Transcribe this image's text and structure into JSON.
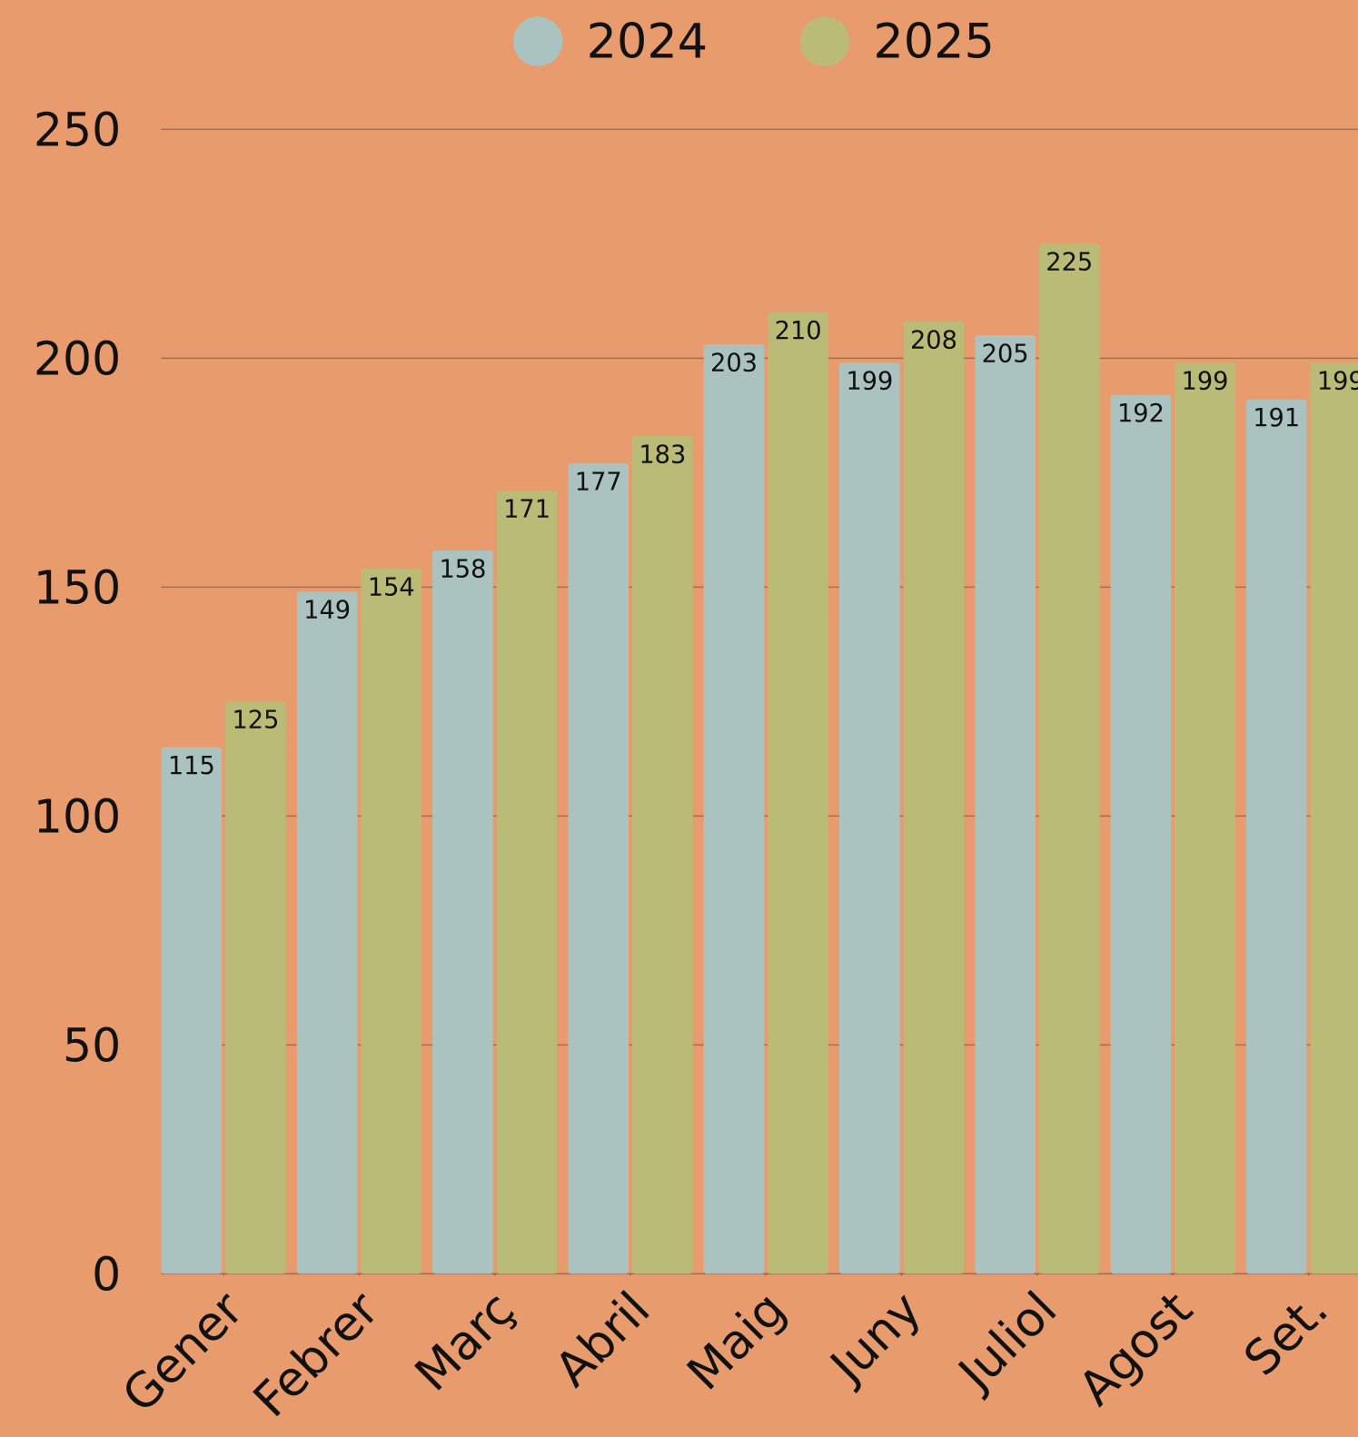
{
  "chart_data": {
    "type": "bar",
    "categories": [
      "Gener",
      "Febrer",
      "Març",
      "Abril",
      "Maig",
      "Juny",
      "Juliol",
      "Agost",
      "Set."
    ],
    "series": [
      {
        "name": "2024",
        "color": "#aac3c0",
        "values": [
          115,
          149,
          158,
          177,
          203,
          199,
          205,
          192,
          191
        ]
      },
      {
        "name": "2025",
        "color": "#bbbb78",
        "values": [
          125,
          154,
          171,
          183,
          210,
          208,
          225,
          199,
          199
        ]
      }
    ],
    "ylim": [
      0,
      250
    ],
    "yticks": [
      0,
      50,
      100,
      150,
      200,
      250
    ],
    "grid": true,
    "legend": "top"
  }
}
